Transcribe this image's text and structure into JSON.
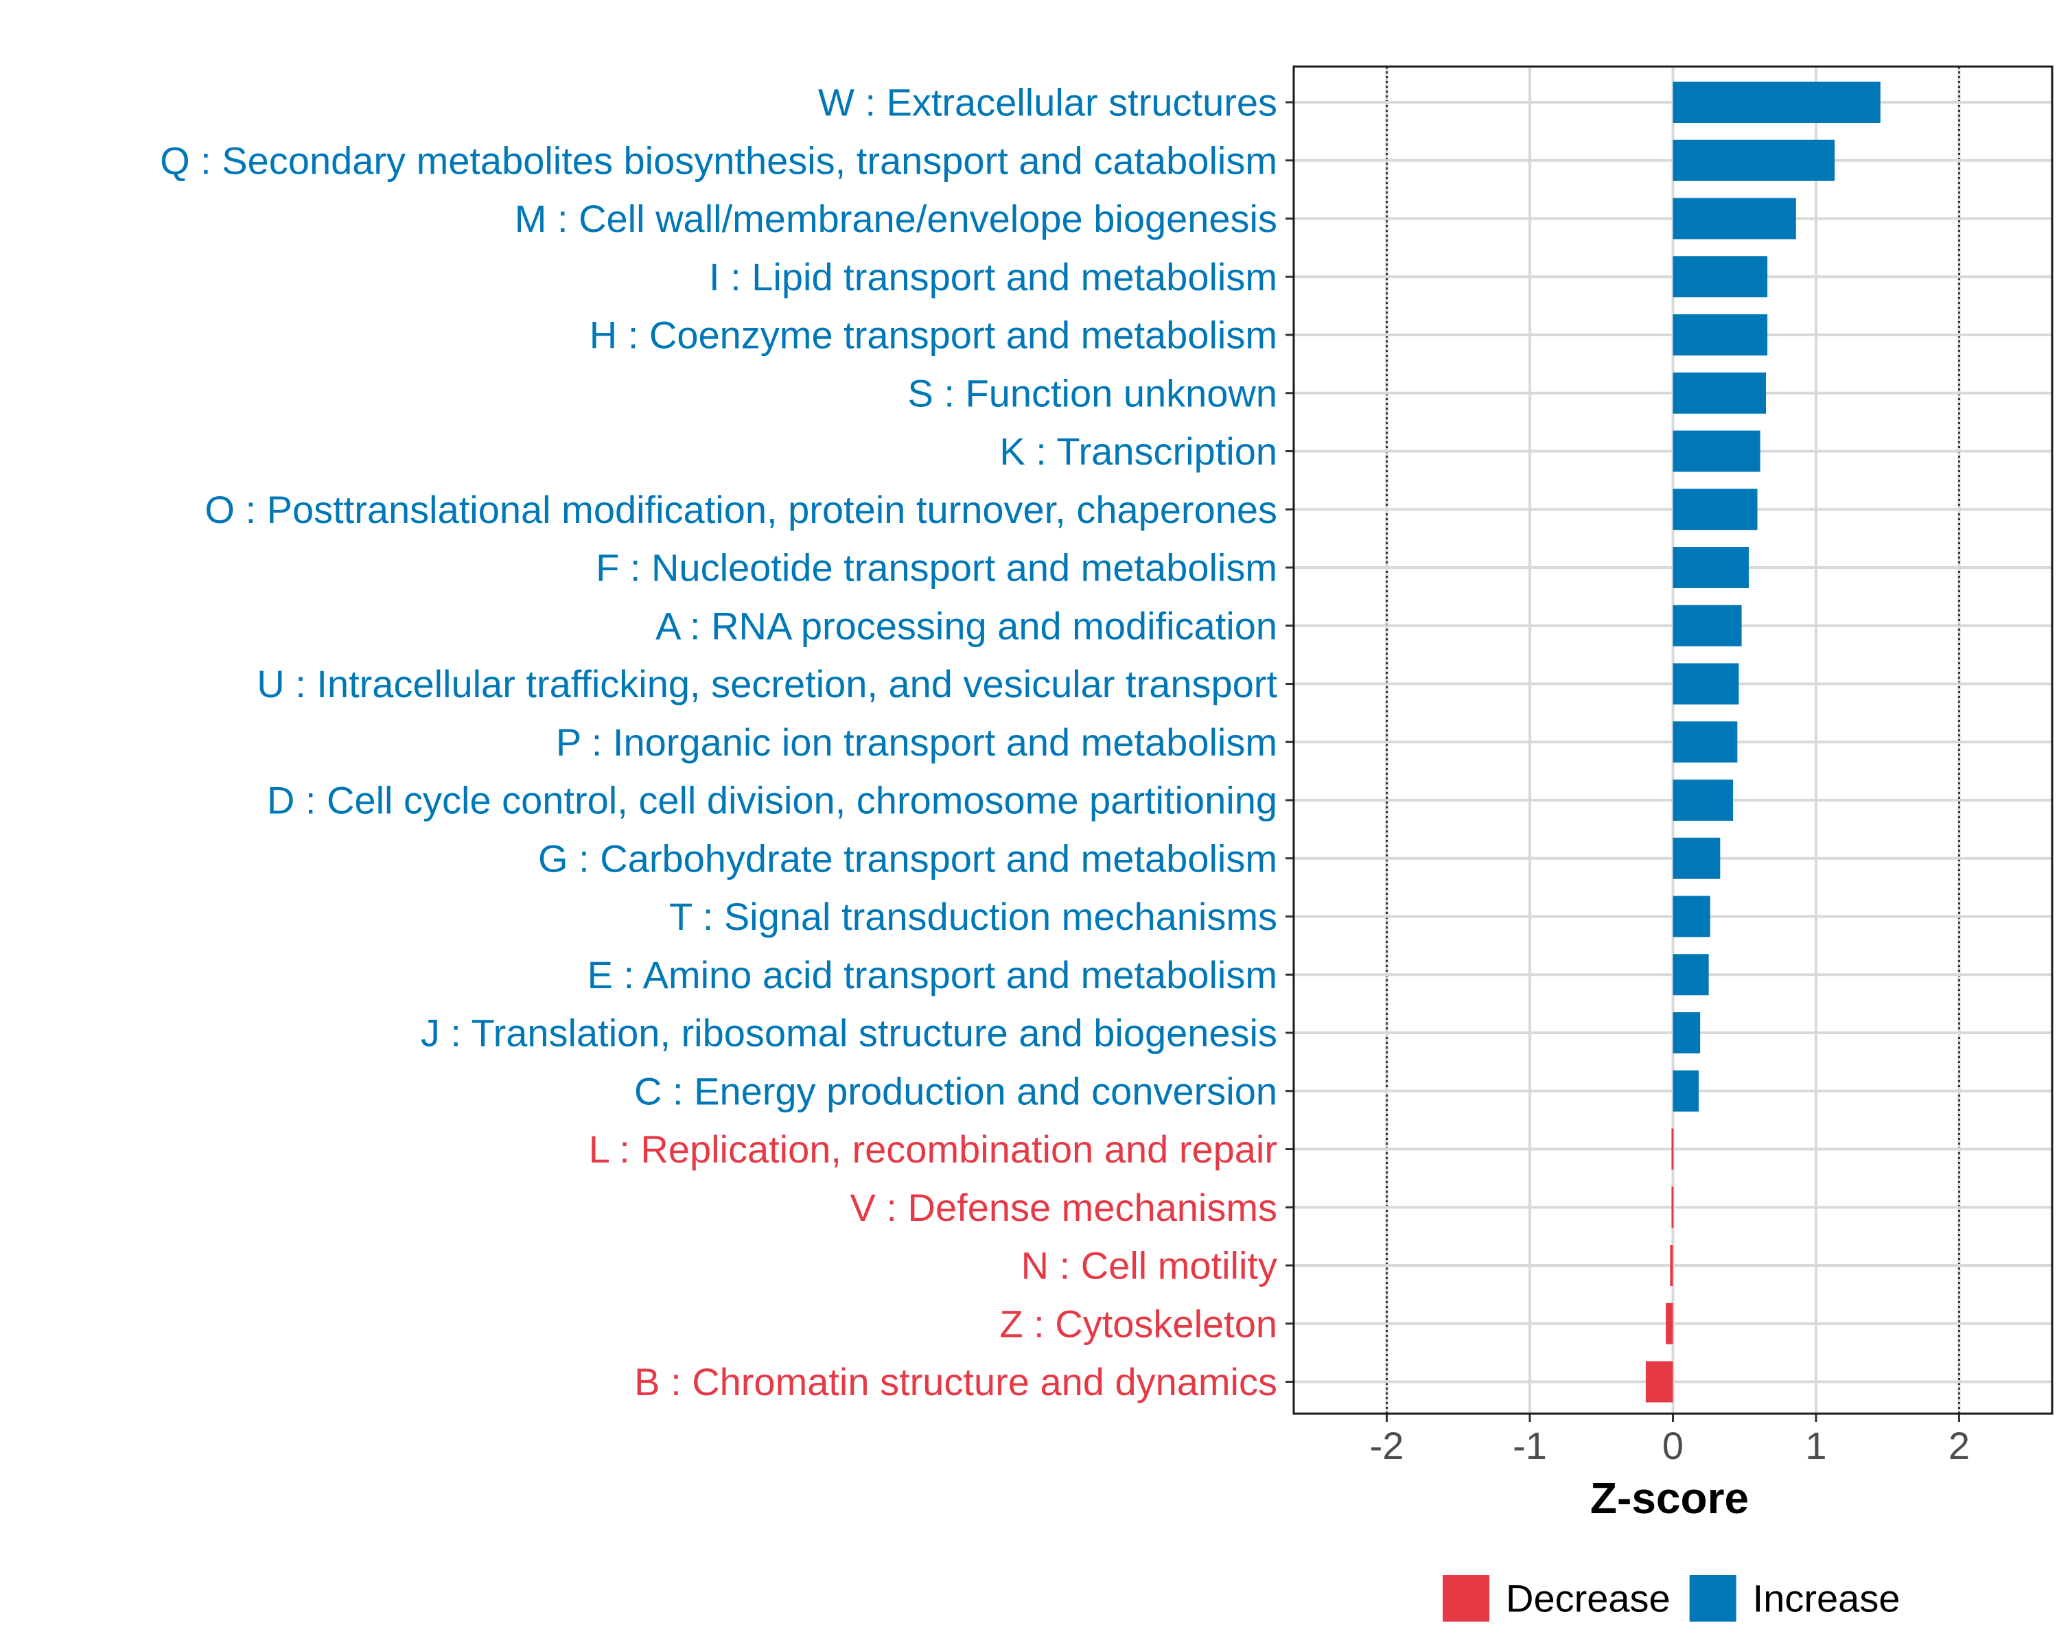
{
  "chart_data": {
    "type": "bar",
    "orientation": "horizontal",
    "title": "",
    "xlabel": "Z-score",
    "ylabel": "",
    "xlim": [
      -2.65,
      2.65
    ],
    "xticks": [
      -2,
      -1,
      0,
      1,
      2
    ],
    "xtick_labels": [
      "-2",
      "-1",
      "0",
      "1",
      "2"
    ],
    "reference_lines": [
      -2,
      2
    ],
    "grid": true,
    "colors": {
      "Decrease": "#e63946",
      "Increase": "#0077b6"
    },
    "legend": {
      "placement": "bottom",
      "entries": [
        {
          "name": "Decrease",
          "color": "#e63946"
        },
        {
          "name": "Increase",
          "color": "#0077b6"
        }
      ]
    },
    "categories": [
      "W : Extracellular structures",
      "Q : Secondary metabolites biosynthesis, transport and catabolism",
      "M : Cell wall/membrane/envelope biogenesis",
      "I : Lipid transport and metabolism",
      "H : Coenzyme transport and metabolism",
      "S : Function unknown",
      "K : Transcription",
      "O : Posttranslational modification, protein turnover, chaperones",
      "F : Nucleotide transport and metabolism",
      "A : RNA processing and modification",
      "U : Intracellular trafficking, secretion, and vesicular transport",
      "P : Inorganic ion transport and metabolism",
      "D : Cell cycle control, cell division, chromosome partitioning",
      "G : Carbohydrate transport and metabolism",
      "T : Signal transduction mechanisms",
      "E : Amino acid transport and metabolism",
      "J : Translation, ribosomal structure and biogenesis",
      "C : Energy production and conversion",
      "L : Replication, recombination and repair",
      "V : Defense mechanisms",
      "N : Cell motility",
      "Z : Cytoskeleton",
      "B : Chromatin structure and dynamics"
    ],
    "values": [
      1.45,
      1.13,
      0.86,
      0.66,
      0.66,
      0.65,
      0.61,
      0.59,
      0.53,
      0.48,
      0.46,
      0.45,
      0.42,
      0.33,
      0.26,
      0.25,
      0.19,
      0.18,
      -0.01,
      -0.01,
      -0.02,
      -0.05,
      -0.19
    ],
    "groups": [
      "Increase",
      "Increase",
      "Increase",
      "Increase",
      "Increase",
      "Increase",
      "Increase",
      "Increase",
      "Increase",
      "Increase",
      "Increase",
      "Increase",
      "Increase",
      "Increase",
      "Increase",
      "Increase",
      "Increase",
      "Increase",
      "Decrease",
      "Decrease",
      "Decrease",
      "Decrease",
      "Decrease"
    ]
  }
}
